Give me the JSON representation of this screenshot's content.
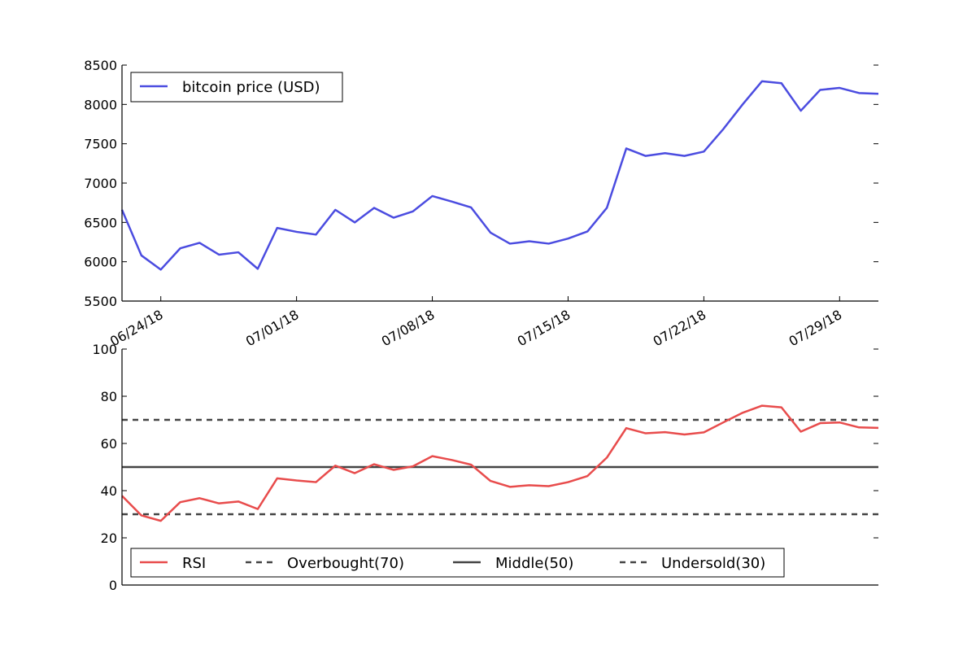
{
  "chart_data": [
    {
      "type": "line",
      "title": "",
      "xlabel": "",
      "ylabel": "",
      "ylim": [
        5500,
        8500
      ],
      "yticks": [
        5500,
        6000,
        6500,
        7000,
        7500,
        8000,
        8500
      ],
      "x": [
        "06/22/18",
        "06/23/18",
        "06/24/18",
        "06/25/18",
        "06/26/18",
        "06/27/18",
        "06/28/18",
        "06/29/18",
        "06/30/18",
        "07/01/18",
        "07/02/18",
        "07/03/18",
        "07/04/18",
        "07/05/18",
        "07/06/18",
        "07/07/18",
        "07/08/18",
        "07/09/18",
        "07/10/18",
        "07/11/18",
        "07/12/18",
        "07/13/18",
        "07/14/18",
        "07/15/18",
        "07/16/18",
        "07/17/18",
        "07/18/18",
        "07/19/18",
        "07/20/18",
        "07/21/18",
        "07/22/18",
        "07/23/18",
        "07/24/18",
        "07/25/18",
        "07/26/18",
        "07/27/18",
        "07/28/18",
        "07/29/18",
        "07/30/18",
        "07/31/18"
      ],
      "xticks": [
        "06/24/18",
        "07/01/18",
        "07/08/18",
        "07/15/18",
        "07/22/18",
        "07/29/18"
      ],
      "series": [
        {
          "name": "bitcoin price (USD)",
          "color": "#4b4ce0",
          "values": [
            6660,
            6080,
            5900,
            6170,
            6240,
            6090,
            6120,
            5910,
            6430,
            6380,
            6345,
            6660,
            6500,
            6685,
            6560,
            6640,
            6835,
            6765,
            6690,
            6370,
            6230,
            6260,
            6230,
            6295,
            6385,
            6685,
            7440,
            7345,
            7380,
            7345,
            7400,
            7685,
            8000,
            8295,
            8270,
            7920,
            8185,
            8210,
            8145,
            8135
          ]
        }
      ],
      "legend": "top-left"
    },
    {
      "type": "line",
      "title": "",
      "xlabel": "",
      "ylabel": "",
      "ylim": [
        0,
        100
      ],
      "yticks": [
        0,
        20,
        40,
        60,
        80,
        100
      ],
      "x": [
        "06/22/18",
        "06/23/18",
        "06/24/18",
        "06/25/18",
        "06/26/18",
        "06/27/18",
        "06/28/18",
        "06/29/18",
        "06/30/18",
        "07/01/18",
        "07/02/18",
        "07/03/18",
        "07/04/18",
        "07/05/18",
        "07/06/18",
        "07/07/18",
        "07/08/18",
        "07/09/18",
        "07/10/18",
        "07/11/18",
        "07/12/18",
        "07/13/18",
        "07/14/18",
        "07/15/18",
        "07/16/18",
        "07/17/18",
        "07/18/18",
        "07/19/18",
        "07/20/18",
        "07/21/18",
        "07/22/18",
        "07/23/18",
        "07/24/18",
        "07/25/18",
        "07/26/18",
        "07/27/18",
        "07/28/18",
        "07/29/18",
        "07/30/18",
        "07/31/18"
      ],
      "series": [
        {
          "name": "RSI",
          "color": "#e84c4c",
          "values": [
            37.8,
            29.5,
            27.2,
            35.1,
            36.8,
            34.6,
            35.4,
            32.2,
            45.2,
            44.3,
            43.6,
            50.6,
            47.4,
            51.2,
            48.8,
            50.3,
            54.6,
            53.0,
            51.0,
            44.1,
            41.6,
            42.3,
            41.9,
            43.6,
            46.2,
            54.0,
            66.5,
            64.3,
            64.8,
            63.8,
            64.7,
            68.9,
            73.0,
            76.0,
            75.3,
            65.0,
            68.6,
            68.9,
            66.8,
            66.6
          ]
        }
      ],
      "hlines": [
        {
          "name": "Overbought(70)",
          "value": 70,
          "style": "dashed",
          "color": "#444444"
        },
        {
          "name": "Middle(50)",
          "value": 50,
          "style": "solid",
          "color": "#444444"
        },
        {
          "name": "Undersold(30)",
          "value": 30,
          "style": "dashed",
          "color": "#444444"
        }
      ],
      "legend": "bottom-left"
    }
  ]
}
